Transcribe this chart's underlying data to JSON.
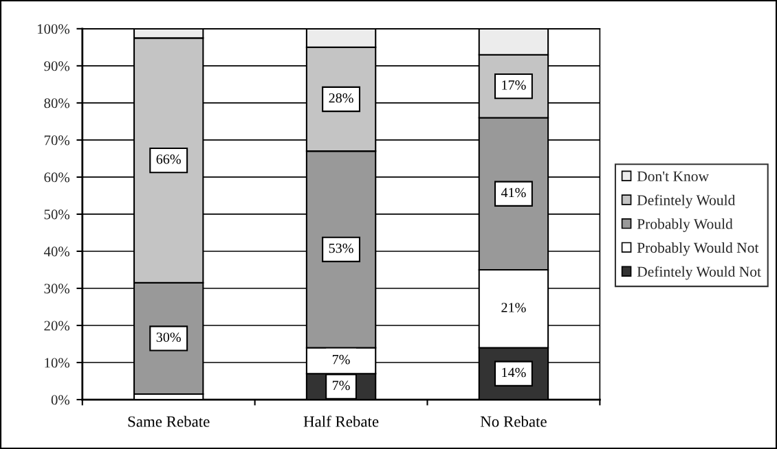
{
  "chart_data": {
    "type": "bar",
    "stacked": true,
    "categories": [
      "Same Rebate",
      "Half Rebate",
      "No Rebate"
    ],
    "series": [
      {
        "name": "Defintely Would Not",
        "color": "#333333",
        "values": [
          null,
          7,
          14
        ],
        "value_labels": [
          null,
          "7%",
          "14%"
        ]
      },
      {
        "name": "Probably Would Not",
        "color": "#ffffff",
        "values": [
          1.5,
          7,
          21
        ],
        "value_labels": [
          null,
          "7%",
          "21%"
        ]
      },
      {
        "name": "Probably Would",
        "color": "#999999",
        "values": [
          30,
          53,
          41
        ],
        "value_labels": [
          "30%",
          "53%",
          "41%"
        ]
      },
      {
        "name": "Defintely Would",
        "color": "#c4c4c4",
        "values": [
          66,
          28,
          17
        ],
        "value_labels": [
          "66%",
          "28%",
          "17%"
        ]
      },
      {
        "name": "Don't Know",
        "color": "#ececec",
        "values": [
          2.5,
          5,
          7
        ]
      }
    ],
    "ylim": [
      0,
      100
    ],
    "yticks": [
      {
        "value": 0,
        "label": "0%"
      },
      {
        "value": 10,
        "label": "10%"
      },
      {
        "value": 20,
        "label": "20%"
      },
      {
        "value": 30,
        "label": "30%"
      },
      {
        "value": 40,
        "label": "40%"
      },
      {
        "value": 50,
        "label": "50%"
      },
      {
        "value": 60,
        "label": "60%"
      },
      {
        "value": 70,
        "label": "70%"
      },
      {
        "value": 80,
        "label": "80%"
      },
      {
        "value": 90,
        "label": "90%"
      },
      {
        "value": 100,
        "label": "100%"
      }
    ],
    "grid": "y",
    "legend": "right"
  }
}
